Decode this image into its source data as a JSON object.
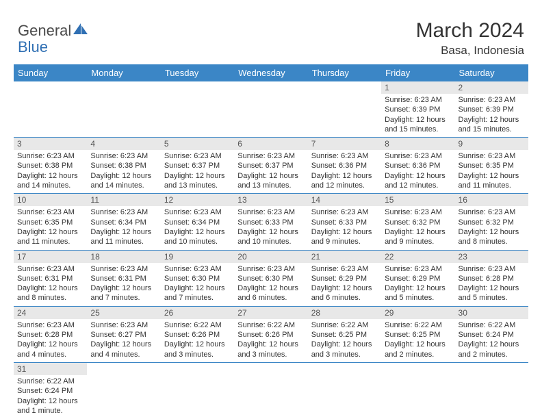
{
  "logo": {
    "text1": "General",
    "text2": "Blue"
  },
  "title": "March 2024",
  "location": "Basa, Indonesia",
  "weekdays": [
    "Sunday",
    "Monday",
    "Tuesday",
    "Wednesday",
    "Thursday",
    "Friday",
    "Saturday"
  ],
  "colors": {
    "header_bg": "#3b86c6",
    "header_fg": "#ffffff",
    "daynum_bg": "#e8e8e8",
    "rule": "#3b86c6",
    "text": "#333333",
    "logo_gray": "#4a4a4a",
    "logo_blue": "#2f6fb3"
  },
  "typography": {
    "title_fontsize": 30,
    "location_fontsize": 17,
    "weekday_fontsize": 13,
    "cell_fontsize": 11
  },
  "weeks": [
    [
      null,
      null,
      null,
      null,
      null,
      {
        "n": "1",
        "sr": "Sunrise: 6:23 AM",
        "ss": "Sunset: 6:39 PM",
        "dl": "Daylight: 12 hours and 15 minutes."
      },
      {
        "n": "2",
        "sr": "Sunrise: 6:23 AM",
        "ss": "Sunset: 6:39 PM",
        "dl": "Daylight: 12 hours and 15 minutes."
      }
    ],
    [
      {
        "n": "3",
        "sr": "Sunrise: 6:23 AM",
        "ss": "Sunset: 6:38 PM",
        "dl": "Daylight: 12 hours and 14 minutes."
      },
      {
        "n": "4",
        "sr": "Sunrise: 6:23 AM",
        "ss": "Sunset: 6:38 PM",
        "dl": "Daylight: 12 hours and 14 minutes."
      },
      {
        "n": "5",
        "sr": "Sunrise: 6:23 AM",
        "ss": "Sunset: 6:37 PM",
        "dl": "Daylight: 12 hours and 13 minutes."
      },
      {
        "n": "6",
        "sr": "Sunrise: 6:23 AM",
        "ss": "Sunset: 6:37 PM",
        "dl": "Daylight: 12 hours and 13 minutes."
      },
      {
        "n": "7",
        "sr": "Sunrise: 6:23 AM",
        "ss": "Sunset: 6:36 PM",
        "dl": "Daylight: 12 hours and 12 minutes."
      },
      {
        "n": "8",
        "sr": "Sunrise: 6:23 AM",
        "ss": "Sunset: 6:36 PM",
        "dl": "Daylight: 12 hours and 12 minutes."
      },
      {
        "n": "9",
        "sr": "Sunrise: 6:23 AM",
        "ss": "Sunset: 6:35 PM",
        "dl": "Daylight: 12 hours and 11 minutes."
      }
    ],
    [
      {
        "n": "10",
        "sr": "Sunrise: 6:23 AM",
        "ss": "Sunset: 6:35 PM",
        "dl": "Daylight: 12 hours and 11 minutes."
      },
      {
        "n": "11",
        "sr": "Sunrise: 6:23 AM",
        "ss": "Sunset: 6:34 PM",
        "dl": "Daylight: 12 hours and 11 minutes."
      },
      {
        "n": "12",
        "sr": "Sunrise: 6:23 AM",
        "ss": "Sunset: 6:34 PM",
        "dl": "Daylight: 12 hours and 10 minutes."
      },
      {
        "n": "13",
        "sr": "Sunrise: 6:23 AM",
        "ss": "Sunset: 6:33 PM",
        "dl": "Daylight: 12 hours and 10 minutes."
      },
      {
        "n": "14",
        "sr": "Sunrise: 6:23 AM",
        "ss": "Sunset: 6:33 PM",
        "dl": "Daylight: 12 hours and 9 minutes."
      },
      {
        "n": "15",
        "sr": "Sunrise: 6:23 AM",
        "ss": "Sunset: 6:32 PM",
        "dl": "Daylight: 12 hours and 9 minutes."
      },
      {
        "n": "16",
        "sr": "Sunrise: 6:23 AM",
        "ss": "Sunset: 6:32 PM",
        "dl": "Daylight: 12 hours and 8 minutes."
      }
    ],
    [
      {
        "n": "17",
        "sr": "Sunrise: 6:23 AM",
        "ss": "Sunset: 6:31 PM",
        "dl": "Daylight: 12 hours and 8 minutes."
      },
      {
        "n": "18",
        "sr": "Sunrise: 6:23 AM",
        "ss": "Sunset: 6:31 PM",
        "dl": "Daylight: 12 hours and 7 minutes."
      },
      {
        "n": "19",
        "sr": "Sunrise: 6:23 AM",
        "ss": "Sunset: 6:30 PM",
        "dl": "Daylight: 12 hours and 7 minutes."
      },
      {
        "n": "20",
        "sr": "Sunrise: 6:23 AM",
        "ss": "Sunset: 6:30 PM",
        "dl": "Daylight: 12 hours and 6 minutes."
      },
      {
        "n": "21",
        "sr": "Sunrise: 6:23 AM",
        "ss": "Sunset: 6:29 PM",
        "dl": "Daylight: 12 hours and 6 minutes."
      },
      {
        "n": "22",
        "sr": "Sunrise: 6:23 AM",
        "ss": "Sunset: 6:29 PM",
        "dl": "Daylight: 12 hours and 5 minutes."
      },
      {
        "n": "23",
        "sr": "Sunrise: 6:23 AM",
        "ss": "Sunset: 6:28 PM",
        "dl": "Daylight: 12 hours and 5 minutes."
      }
    ],
    [
      {
        "n": "24",
        "sr": "Sunrise: 6:23 AM",
        "ss": "Sunset: 6:28 PM",
        "dl": "Daylight: 12 hours and 4 minutes."
      },
      {
        "n": "25",
        "sr": "Sunrise: 6:23 AM",
        "ss": "Sunset: 6:27 PM",
        "dl": "Daylight: 12 hours and 4 minutes."
      },
      {
        "n": "26",
        "sr": "Sunrise: 6:22 AM",
        "ss": "Sunset: 6:26 PM",
        "dl": "Daylight: 12 hours and 3 minutes."
      },
      {
        "n": "27",
        "sr": "Sunrise: 6:22 AM",
        "ss": "Sunset: 6:26 PM",
        "dl": "Daylight: 12 hours and 3 minutes."
      },
      {
        "n": "28",
        "sr": "Sunrise: 6:22 AM",
        "ss": "Sunset: 6:25 PM",
        "dl": "Daylight: 12 hours and 3 minutes."
      },
      {
        "n": "29",
        "sr": "Sunrise: 6:22 AM",
        "ss": "Sunset: 6:25 PM",
        "dl": "Daylight: 12 hours and 2 minutes."
      },
      {
        "n": "30",
        "sr": "Sunrise: 6:22 AM",
        "ss": "Sunset: 6:24 PM",
        "dl": "Daylight: 12 hours and 2 minutes."
      }
    ],
    [
      {
        "n": "31",
        "sr": "Sunrise: 6:22 AM",
        "ss": "Sunset: 6:24 PM",
        "dl": "Daylight: 12 hours and 1 minute."
      },
      null,
      null,
      null,
      null,
      null,
      null
    ]
  ]
}
